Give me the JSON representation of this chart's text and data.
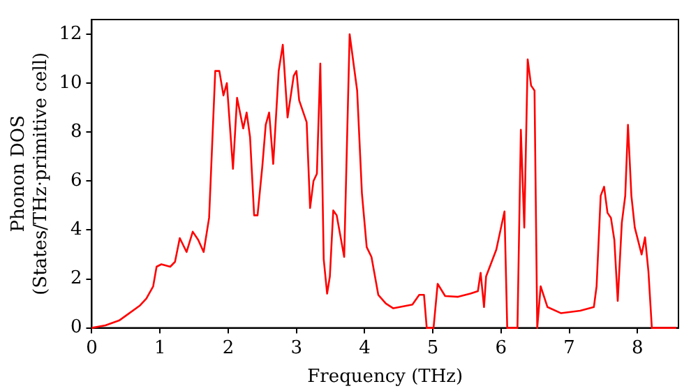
{
  "chart_data": {
    "type": "line",
    "xlabel": "Frequency (THz)",
    "ylabel": "Phonon DOS\n(States/THz·primitive cell)",
    "xlim": [
      0,
      8.6
    ],
    "ylim": [
      0,
      12.6
    ],
    "xticks": [
      0,
      1,
      2,
      3,
      4,
      5,
      6,
      7,
      8
    ],
    "yticks": [
      0,
      2,
      4,
      6,
      8,
      10,
      12
    ],
    "grid": false,
    "legend": false,
    "marker": "none",
    "line_style": "solid",
    "series": [
      {
        "color": "#ff0000",
        "x": [
          0,
          0.2,
          0.4,
          0.5,
          0.7,
          0.8,
          0.9,
          0.95,
          1.02,
          1.15,
          1.22,
          1.29,
          1.39,
          1.48,
          1.56,
          1.64,
          1.72,
          1.81,
          1.87,
          1.93,
          1.98,
          2.07,
          2.13,
          2.22,
          2.27,
          2.32,
          2.38,
          2.43,
          2.5,
          2.55,
          2.6,
          2.66,
          2.74,
          2.8,
          2.87,
          2.96,
          3.0,
          3.04,
          3.15,
          3.2,
          3.25,
          3.3,
          3.35,
          3.4,
          3.45,
          3.49,
          3.54,
          3.59,
          3.7,
          3.78,
          3.89,
          3.96,
          4.03,
          4.1,
          4.2,
          4.31,
          4.42,
          4.7,
          4.8,
          4.87,
          4.91,
          5.01,
          5.07,
          5.18,
          5.37,
          5.55,
          5.66,
          5.7,
          5.75,
          5.78,
          5.93,
          6.05,
          6.09,
          6.24,
          6.29,
          6.34,
          6.39,
          6.44,
          6.49,
          6.53,
          6.58,
          6.68,
          6.88,
          7.16,
          7.36,
          7.4,
          7.46,
          7.51,
          7.56,
          7.61,
          7.66,
          7.71,
          7.77,
          7.82,
          7.86,
          7.91,
          7.96,
          8.06,
          8.11,
          8.16,
          8.21,
          8.57
        ],
        "values": [
          0,
          0.1,
          0.3,
          0.5,
          0.9,
          1.2,
          1.7,
          2.5,
          2.6,
          2.5,
          2.7,
          3.67,
          3.1,
          3.93,
          3.6,
          3.1,
          4.5,
          10.5,
          10.5,
          9.5,
          10.0,
          6.5,
          9.4,
          8.15,
          8.8,
          7.8,
          4.6,
          4.6,
          6.6,
          8.3,
          8.8,
          6.7,
          10.5,
          11.57,
          8.6,
          10.3,
          10.5,
          9.3,
          8.4,
          4.9,
          6.0,
          6.3,
          10.8,
          2.8,
          1.4,
          2.1,
          4.8,
          4.6,
          2.9,
          12.0,
          9.7,
          5.5,
          3.3,
          2.9,
          1.35,
          1.0,
          0.8,
          0.95,
          1.35,
          1.35,
          0,
          0,
          1.8,
          1.3,
          1.27,
          1.4,
          1.5,
          2.25,
          0.85,
          2.1,
          3.2,
          4.76,
          0,
          0,
          8.1,
          4.1,
          10.97,
          9.9,
          9.7,
          0,
          1.7,
          0.85,
          0.6,
          0.7,
          0.85,
          1.7,
          5.4,
          5.77,
          4.7,
          4.5,
          3.6,
          1.1,
          4.3,
          5.4,
          8.3,
          5.4,
          4.1,
          3.0,
          3.7,
          2.3,
          0,
          0
        ]
      }
    ]
  }
}
